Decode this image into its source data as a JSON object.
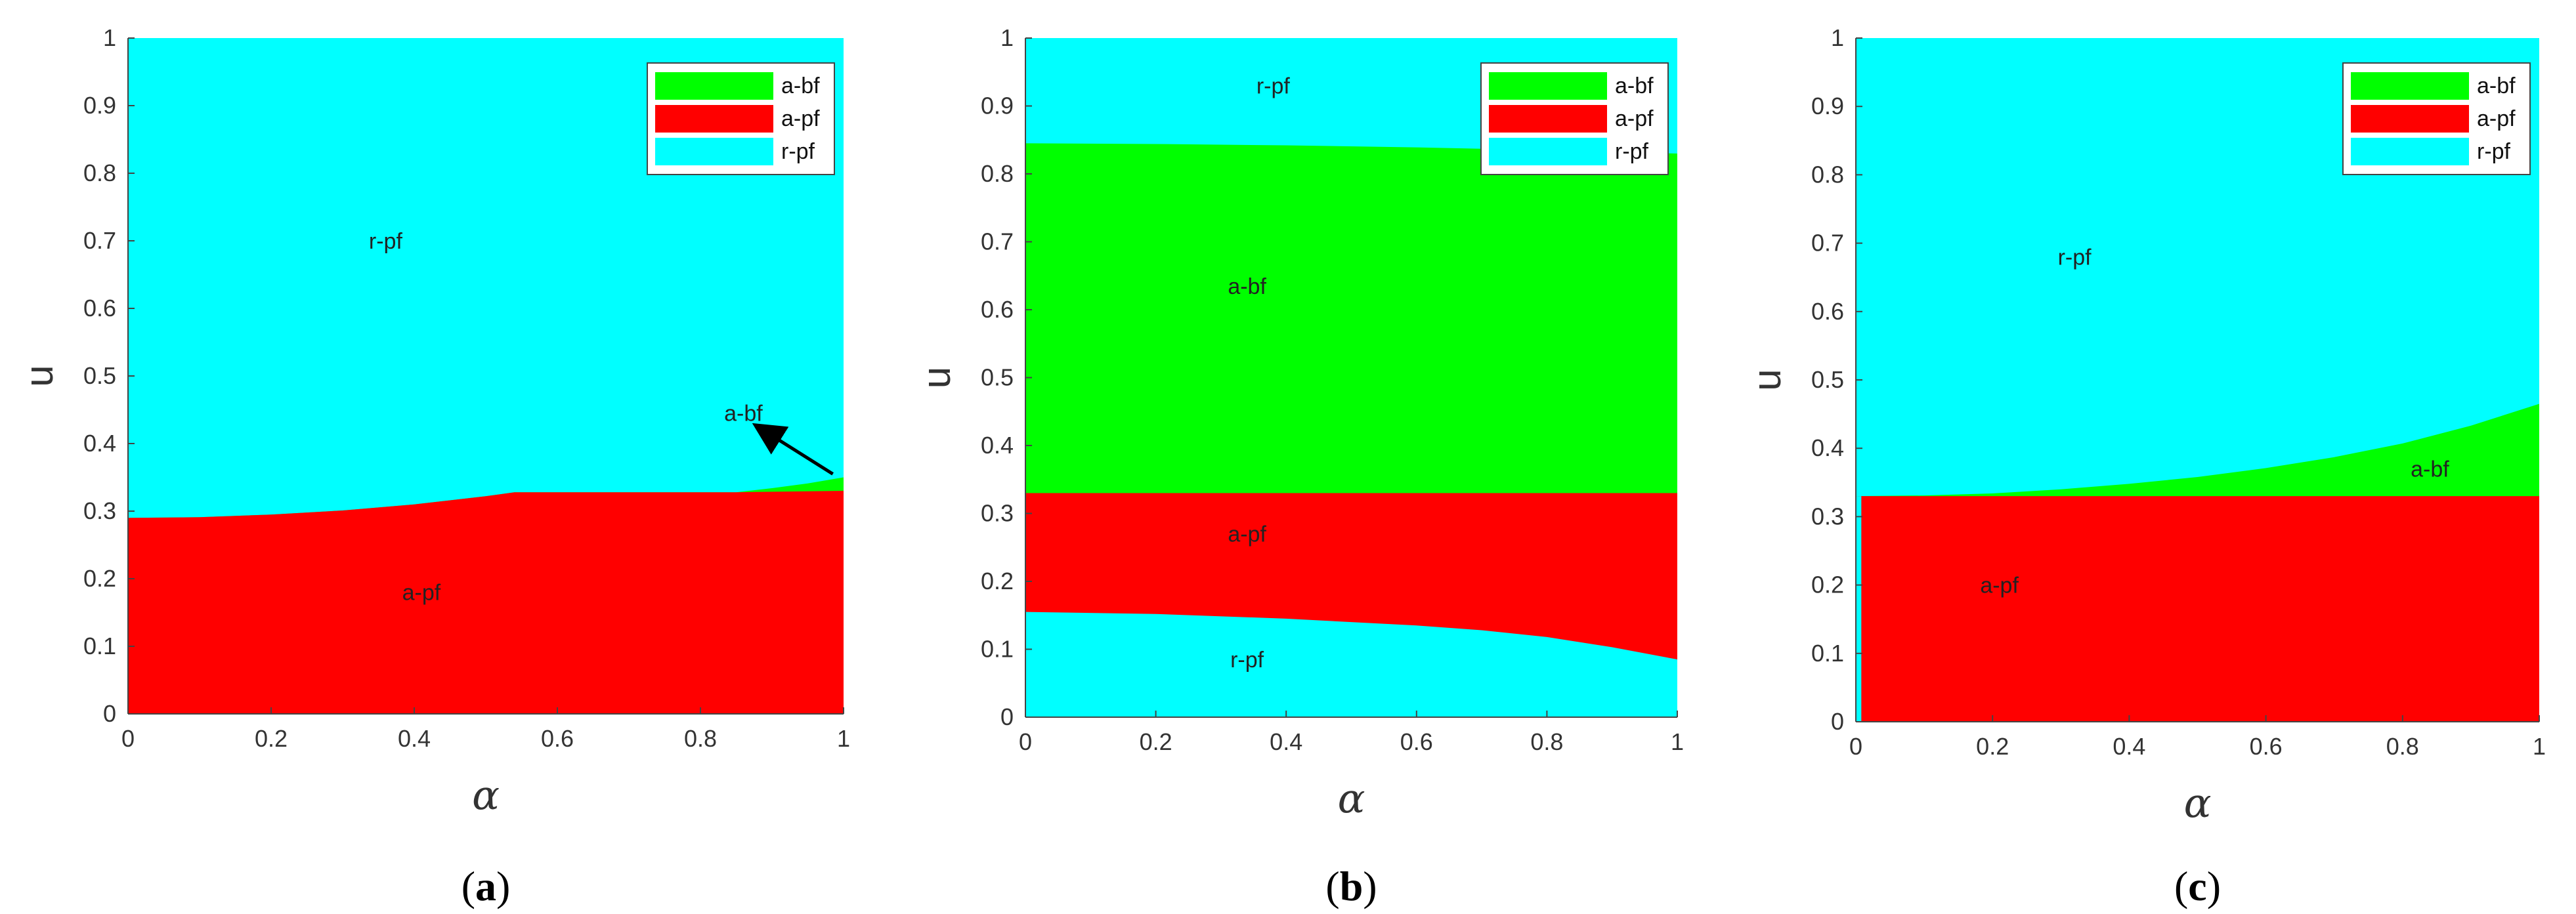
{
  "colors": {
    "a-bf": "#00ff00",
    "a-pf": "#ff0000",
    "r-pf": "#00ffff"
  },
  "chart_data": [
    {
      "id": "a",
      "type": "area",
      "caption_open": "(",
      "caption_letter": "a",
      "caption_close": ")",
      "xlabel": "α",
      "ylabel": "u",
      "xlim": [
        0,
        1
      ],
      "ylim": [
        0,
        1
      ],
      "xticks": [
        "0",
        "0.2",
        "0.4",
        "0.6",
        "0.8",
        "1"
      ],
      "yticks": [
        "0",
        "0.1",
        "0.2",
        "0.3",
        "0.4",
        "0.5",
        "0.6",
        "0.7",
        "0.8",
        "0.9",
        "1"
      ],
      "legend": {
        "location": "top-right",
        "entries": [
          "a-bf",
          "a-pf",
          "r-pf"
        ]
      },
      "region_order": [
        "a-pf",
        "a-bf",
        "r-pf"
      ],
      "boundaries": {
        "a-pf_upper": [
          [
            0,
            0.29
          ],
          [
            0.1,
            0.291
          ],
          [
            0.2,
            0.295
          ],
          [
            0.3,
            0.301
          ],
          [
            0.4,
            0.31
          ],
          [
            0.5,
            0.322
          ],
          [
            0.54,
            0.328
          ],
          [
            0.7,
            0.328
          ],
          [
            0.85,
            0.328
          ],
          [
            1.0,
            0.33
          ]
        ],
        "a-bf_upper": [
          [
            0,
            0.29
          ],
          [
            0.1,
            0.291
          ],
          [
            0.2,
            0.295
          ],
          [
            0.3,
            0.301
          ],
          [
            0.4,
            0.31
          ],
          [
            0.5,
            0.322
          ],
          [
            0.54,
            0.328
          ],
          [
            0.7,
            0.328
          ],
          [
            0.85,
            0.328
          ],
          [
            0.9,
            0.334
          ],
          [
            0.95,
            0.341
          ],
          [
            1.0,
            0.35
          ]
        ]
      },
      "region_labels": [
        {
          "text": "r-pf",
          "x": 0.36,
          "y": 0.7
        },
        {
          "text": "a-pf",
          "x": 0.41,
          "y": 0.18
        }
      ],
      "annotations": [
        {
          "text": "a-bf",
          "x": 0.86,
          "y": 0.445,
          "arrow_from": [
            0.985,
            0.355
          ],
          "arrow_to": [
            0.88,
            0.425
          ]
        }
      ]
    },
    {
      "id": "b",
      "type": "area",
      "caption_open": "(",
      "caption_letter": "b",
      "caption_close": ")",
      "xlabel": "α",
      "ylabel": "u",
      "xlim": [
        0,
        1
      ],
      "ylim": [
        0,
        1
      ],
      "xticks": [
        "0",
        "0.2",
        "0.4",
        "0.6",
        "0.8",
        "1"
      ],
      "yticks": [
        "0",
        "0.1",
        "0.2",
        "0.3",
        "0.4",
        "0.5",
        "0.6",
        "0.7",
        "0.8",
        "0.9",
        "1"
      ],
      "legend": {
        "location": "top-right",
        "entries": [
          "a-bf",
          "a-pf",
          "r-pf"
        ]
      },
      "region_order": [
        "r-pf",
        "a-pf",
        "a-bf",
        "r-pf"
      ],
      "boundaries": {
        "r-pf_lower_upper": [
          [
            0,
            0.155
          ],
          [
            0.2,
            0.152
          ],
          [
            0.4,
            0.145
          ],
          [
            0.6,
            0.135
          ],
          [
            0.7,
            0.128
          ],
          [
            0.8,
            0.118
          ],
          [
            0.9,
            0.103
          ],
          [
            1.0,
            0.085
          ]
        ],
        "a-pf_upper": [
          [
            0,
            0.33
          ],
          [
            1.0,
            0.33
          ]
        ],
        "a-bf_upper": [
          [
            0,
            0.845
          ],
          [
            0.2,
            0.844
          ],
          [
            0.4,
            0.842
          ],
          [
            0.6,
            0.839
          ],
          [
            0.8,
            0.835
          ],
          [
            1.0,
            0.83
          ]
        ]
      },
      "region_labels": [
        {
          "text": "r-pf",
          "x": 0.38,
          "y": 0.93
        },
        {
          "text": "a-bf",
          "x": 0.34,
          "y": 0.635
        },
        {
          "text": "a-pf",
          "x": 0.34,
          "y": 0.27
        },
        {
          "text": "r-pf",
          "x": 0.34,
          "y": 0.085
        }
      ],
      "annotations": []
    },
    {
      "id": "c",
      "type": "area",
      "caption_open": "(",
      "caption_letter": "c",
      "caption_close": ")",
      "xlabel": "α",
      "ylabel": "u",
      "xlim": [
        0,
        1
      ],
      "ylim": [
        0,
        1
      ],
      "xticks": [
        "0",
        "0.2",
        "0.4",
        "0.6",
        "0.8",
        "1"
      ],
      "yticks": [
        "0",
        "0.1",
        "0.2",
        "0.3",
        "0.4",
        "0.5",
        "0.6",
        "0.7",
        "0.8",
        "0.9",
        "1"
      ],
      "legend": {
        "location": "top-right",
        "entries": [
          "a-bf",
          "a-pf",
          "r-pf"
        ]
      },
      "region_order": [
        "r-pf",
        "a-pf",
        "a-bf",
        "r-pf"
      ],
      "boundaries": {
        "left_strip_x": 0.008,
        "a-pf_upper": [
          [
            0,
            0.33
          ],
          [
            1.0,
            0.33
          ]
        ],
        "a-bf_upper": [
          [
            0,
            0.33
          ],
          [
            0.1,
            0.331
          ],
          [
            0.2,
            0.334
          ],
          [
            0.3,
            0.34
          ],
          [
            0.4,
            0.348
          ],
          [
            0.5,
            0.358
          ],
          [
            0.6,
            0.371
          ],
          [
            0.7,
            0.387
          ],
          [
            0.8,
            0.407
          ],
          [
            0.9,
            0.433
          ],
          [
            1.0,
            0.465
          ]
        ]
      },
      "region_labels": [
        {
          "text": "r-pf",
          "x": 0.32,
          "y": 0.68
        },
        {
          "text": "a-bf",
          "x": 0.84,
          "y": 0.37
        },
        {
          "text": "a-pf",
          "x": 0.21,
          "y": 0.2
        }
      ],
      "annotations": []
    }
  ]
}
